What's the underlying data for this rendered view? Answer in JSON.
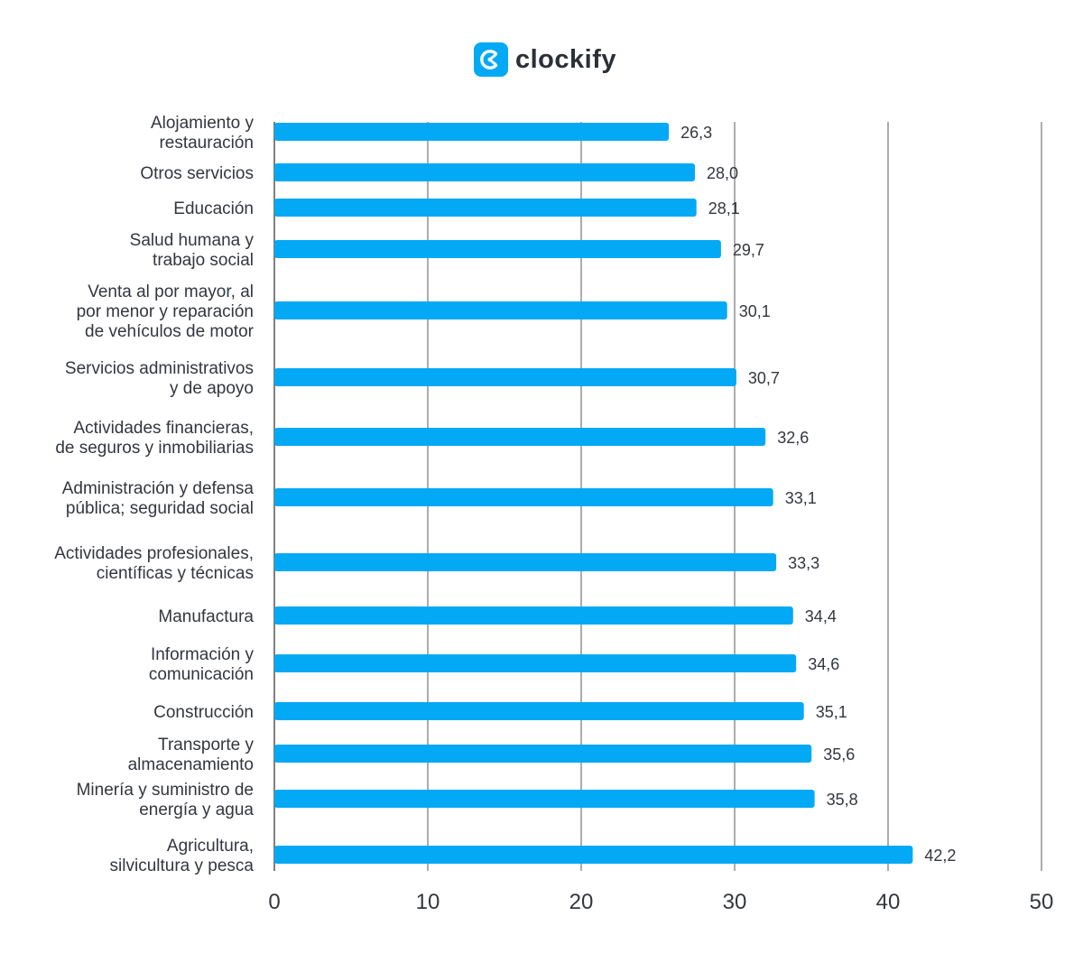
{
  "brand": {
    "name": "clockify",
    "icon": "clockify-logo-icon",
    "accent": "#03a9f4"
  },
  "chart_data": {
    "type": "bar",
    "orientation": "horizontal",
    "categories": [
      [
        "Alojamiento y",
        "restauración"
      ],
      [
        "Otros servicios"
      ],
      [
        "Educación"
      ],
      [
        "Salud humana y",
        "trabajo social"
      ],
      [
        "Venta al por mayor, al",
        "por menor y reparación",
        "de vehículos de motor"
      ],
      [
        "Servicios administrativos",
        "y de apoyo"
      ],
      [
        "Actividades financieras,",
        "de seguros y inmobiliarias"
      ],
      [
        "Administración y defensa",
        "pública; seguridad social"
      ],
      [
        "Actividades profesionales,",
        "científicas y técnicas"
      ],
      [
        "Manufactura"
      ],
      [
        "Información y",
        "comunicación"
      ],
      [
        "Construcción"
      ],
      [
        "Transporte y",
        "almacenamiento"
      ],
      [
        "Minería y suministro de",
        "energía y agua"
      ],
      [
        "Agricultura,",
        "silvicultura y pesca"
      ]
    ],
    "values": [
      26.3,
      28.0,
      28.1,
      29.7,
      30.1,
      30.7,
      32.6,
      33.1,
      33.3,
      34.4,
      34.6,
      35.1,
      35.6,
      35.8,
      42.2
    ],
    "value_labels": [
      "26,3",
      "28,0",
      "28,1",
      "29,7",
      "30,1",
      "30,7",
      "32,6",
      "33,1",
      "33,3",
      "34,4",
      "34,6",
      "35,1",
      "35,6",
      "35,8",
      "42,2"
    ],
    "x_ticks": [
      "0",
      "10",
      "20",
      "30",
      "40",
      "50"
    ],
    "xlim": [
      0,
      50
    ],
    "grid": true,
    "bar_color": "#03a9f4",
    "title": "",
    "xlabel": "",
    "ylabel": ""
  }
}
